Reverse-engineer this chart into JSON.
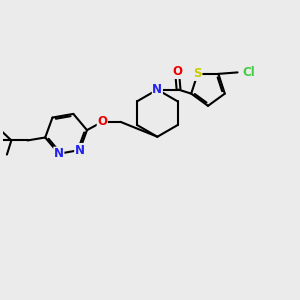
{
  "bg_color": "#ebebeb",
  "atom_colors": {
    "N": "#2222ee",
    "O": "#ee0000",
    "S": "#cccc00",
    "Cl": "#44cc44",
    "C": "#000000"
  },
  "bond_width": 1.5,
  "font_size": 8.5
}
